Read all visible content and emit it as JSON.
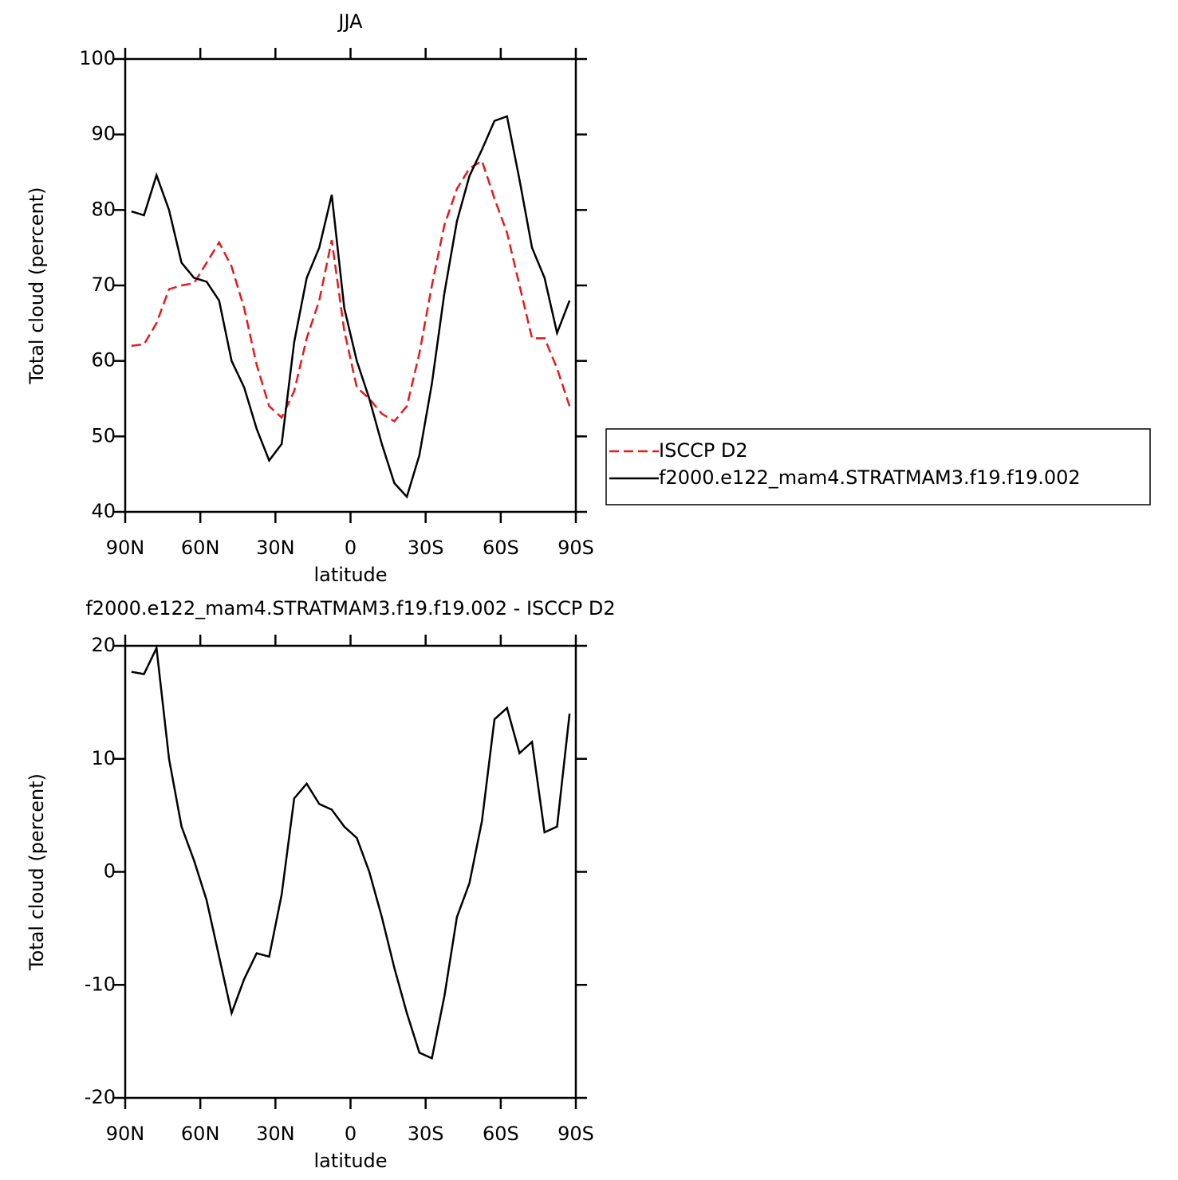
{
  "chart_data": [
    {
      "type": "line",
      "title": "JJA",
      "xlabel": "latitude",
      "ylabel": "Total cloud (percent)",
      "x": [
        87.5,
        82.5,
        77.5,
        72.5,
        67.5,
        62.5,
        57.5,
        52.5,
        47.5,
        42.5,
        37.5,
        32.5,
        27.5,
        22.5,
        17.5,
        12.5,
        7.5,
        2.5,
        -2.5,
        -7.5,
        -12.5,
        -17.5,
        -22.5,
        -27.5,
        -32.5,
        -37.5,
        -42.5,
        -47.5,
        -52.5,
        -57.5,
        -62.5,
        -67.5,
        -72.5,
        -77.5,
        -82.5,
        -87.5
      ],
      "series": [
        {
          "name": "ISCCP D2",
          "color": "#e8181b",
          "dashed": true,
          "values": [
            62,
            62.2,
            65,
            69.5,
            70,
            70.3,
            73,
            75.7,
            72.5,
            67,
            59.5,
            54,
            52.5,
            56,
            63,
            68,
            76,
            64,
            56.5,
            55,
            53,
            52,
            54,
            61,
            70,
            78,
            82.8,
            85.5,
            86.5,
            81.5,
            77,
            70,
            63,
            63,
            59,
            54
          ]
        },
        {
          "name": "f2000.e122_mam4.STRATMAM3.f19.f19.002",
          "color": "#000000",
          "dashed": false,
          "values": [
            79.8,
            79.3,
            84.6,
            80,
            73,
            71,
            70.5,
            68,
            60,
            56.5,
            51,
            46.8,
            49,
            62.5,
            71,
            75,
            82,
            67,
            60,
            55,
            49,
            43.8,
            42,
            47.5,
            57,
            69,
            78.5,
            84.5,
            88,
            91.8,
            92.4,
            84,
            75,
            71,
            63.7,
            68
          ]
        }
      ],
      "xlim": [
        90,
        -90
      ],
      "xticks": [
        {
          "value": 90,
          "label": "90N"
        },
        {
          "value": 60,
          "label": "60N"
        },
        {
          "value": 30,
          "label": "30N"
        },
        0,
        {
          "value": -30,
          "label": "30S"
        },
        {
          "value": -60,
          "label": "60S"
        },
        {
          "value": -90,
          "label": "90S"
        }
      ],
      "ylim": [
        40,
        100
      ],
      "yticks": [
        40,
        50,
        60,
        70,
        80,
        90,
        100
      ],
      "legend": "right"
    },
    {
      "type": "line",
      "title": "f2000.e122_mam4.STRATMAM3.f19.f19.002 - ISCCP D2",
      "xlabel": "latitude",
      "ylabel": "Total cloud (percent)",
      "x": [
        87.5,
        82.5,
        77.5,
        72.5,
        67.5,
        62.5,
        57.5,
        52.5,
        47.5,
        42.5,
        37.5,
        32.5,
        27.5,
        22.5,
        17.5,
        12.5,
        7.5,
        2.5,
        -2.5,
        -7.5,
        -12.5,
        -17.5,
        -22.5,
        -27.5,
        -32.5,
        -37.5,
        -42.5,
        -47.5,
        -52.5,
        -57.5,
        -62.5,
        -67.5,
        -72.5,
        -77.5,
        -82.5,
        -87.5
      ],
      "series": [
        {
          "color": "#000000",
          "dashed": false,
          "values": [
            17.7,
            17.5,
            19.8,
            10,
            4,
            1,
            -2.5,
            -7.5,
            -12.5,
            -9.5,
            -7.2,
            -7.5,
            -2,
            6.5,
            7.8,
            6,
            5.5,
            4,
            3,
            0,
            -4,
            -8.5,
            -12.5,
            -16,
            -16.5,
            -11,
            -4,
            -1,
            4.5,
            13.5,
            14.5,
            10.5,
            11.5,
            3.5,
            4,
            14
          ]
        }
      ],
      "xlim": [
        90,
        -90
      ],
      "xticks": [
        {
          "value": 90,
          "label": "90N"
        },
        {
          "value": 60,
          "label": "60N"
        },
        {
          "value": 30,
          "label": "30N"
        },
        0,
        {
          "value": -30,
          "label": "30S"
        },
        {
          "value": -60,
          "label": "60S"
        },
        {
          "value": -90,
          "label": "90S"
        }
      ],
      "ylim": [
        -20,
        20
      ],
      "yticks": [
        -20,
        -10,
        0,
        10,
        20
      ]
    }
  ]
}
